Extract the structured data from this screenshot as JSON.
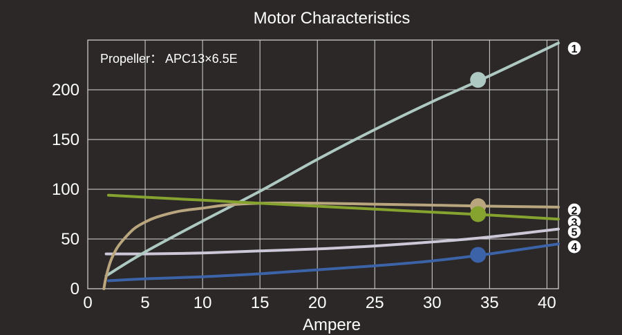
{
  "chart_data": {
    "type": "line",
    "title": "Motor Characteristics",
    "xlabel": "Ampere",
    "ylabel": "",
    "annotation": "Propeller： APC13×6.5E",
    "xlim": [
      0,
      41
    ],
    "ylim": [
      0,
      250
    ],
    "xticks": [
      "0",
      "5",
      "10",
      "15",
      "20",
      "25",
      "30",
      "35",
      "40"
    ],
    "yticks": [
      "0",
      "50",
      "100",
      "150",
      "200"
    ],
    "grid": true,
    "colors": {
      "background": "#2b2827",
      "grid": "#d9d9d9",
      "text": "#ffffff"
    },
    "series": [
      {
        "id": "1",
        "color": "#aec9c1",
        "marker": [
          34,
          210
        ],
        "x": [
          1.6,
          5,
          10,
          15,
          20,
          25,
          30,
          35,
          41
        ],
        "y": [
          13,
          37,
          68,
          98,
          130,
          160,
          188,
          214,
          247
        ]
      },
      {
        "id": "2",
        "color": "#b9a67f",
        "marker": [
          34,
          83
        ],
        "x": [
          1.4,
          1.6,
          2,
          2.5,
          3,
          4,
          5,
          6,
          8,
          10,
          12,
          15,
          20,
          25,
          30,
          35,
          41
        ],
        "y": [
          0,
          12,
          28,
          40,
          48,
          60,
          67,
          72,
          78,
          81,
          84,
          86,
          86,
          85,
          84,
          83,
          82
        ]
      },
      {
        "id": "3",
        "color": "#86a32f",
        "marker": [
          34,
          75
        ],
        "x": [
          1.8,
          5,
          10,
          15,
          20,
          25,
          30,
          35,
          41
        ],
        "y": [
          94,
          92,
          89,
          86,
          83,
          80,
          77,
          74,
          70
        ]
      },
      {
        "id": "4",
        "color": "#3c63a8",
        "marker": [
          34,
          34
        ],
        "x": [
          1.8,
          5,
          10,
          15,
          20,
          25,
          30,
          35,
          41
        ],
        "y": [
          8,
          10,
          12,
          15,
          19,
          23,
          28,
          35,
          45
        ]
      },
      {
        "id": "5",
        "color": "#cdc8d7",
        "marker": null,
        "x": [
          1.6,
          5,
          10,
          15,
          20,
          25,
          30,
          35,
          41
        ],
        "y": [
          35,
          35,
          36,
          38,
          40,
          43,
          47,
          52,
          60
        ]
      }
    ]
  }
}
